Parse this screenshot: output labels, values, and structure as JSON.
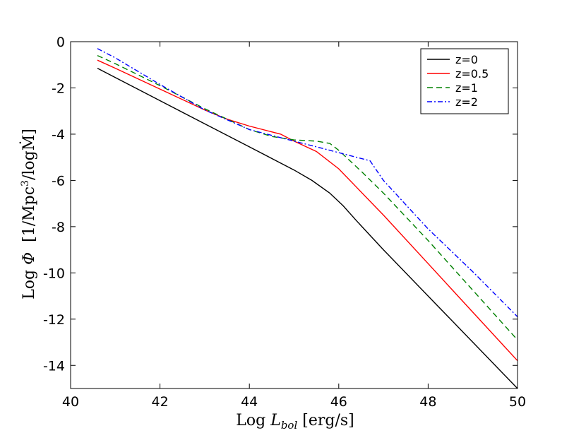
{
  "chart_data": {
    "type": "line",
    "xlabel": "Log L_bol [erg/s]",
    "xlabel_parts": {
      "prefix": "Log ",
      "symbol": "L",
      "sub": "bol",
      "unit": " [erg/s]"
    },
    "ylabel": "Log Φ  [1/Mpc³/logṀ]",
    "ylabel_parts": {
      "prefix": "Log ",
      "symbol": "Φ",
      "unit": "  [1/Mpc",
      "sup": "3",
      "unit2": "/logṀ]"
    },
    "xlim": [
      40,
      50
    ],
    "ylim": [
      -15,
      0
    ],
    "xticks": [
      40,
      42,
      44,
      46,
      48,
      50
    ],
    "yticks": [
      0,
      -2,
      -4,
      -6,
      -8,
      -10,
      -12,
      -14
    ],
    "xtick_labels": [
      "40",
      "42",
      "44",
      "46",
      "48",
      "50"
    ],
    "ytick_labels": [
      "0",
      "-2",
      "-4",
      "-6",
      "-8",
      "-10",
      "-12",
      "-14"
    ],
    "legend_position": "top-right",
    "grid": false,
    "series": [
      {
        "name": "z=0",
        "color": "#000000",
        "style": "solid",
        "x": [
          40.6,
          41.0,
          42.0,
          43.0,
          44.0,
          44.6,
          45.0,
          45.4,
          45.8,
          46.1,
          46.4,
          47.0,
          48.0,
          49.0,
          50.0
        ],
        "y": [
          -1.15,
          -1.55,
          -2.55,
          -3.55,
          -4.55,
          -5.15,
          -5.55,
          -6.0,
          -6.55,
          -7.1,
          -7.75,
          -9.0,
          -11.0,
          -13.0,
          -15.0
        ]
      },
      {
        "name": "z=0.5",
        "color": "#ff0000",
        "style": "solid",
        "x": [
          40.6,
          41.0,
          42.0,
          43.0,
          43.5,
          44.0,
          44.5,
          44.7,
          45.0,
          45.5,
          46.0,
          46.4,
          47.0,
          48.0,
          49.0,
          50.0
        ],
        "y": [
          -0.8,
          -1.15,
          -2.05,
          -2.95,
          -3.35,
          -3.65,
          -3.9,
          -4.0,
          -4.3,
          -4.75,
          -5.5,
          -6.3,
          -7.5,
          -9.6,
          -11.7,
          -13.8
        ]
      },
      {
        "name": "z=1",
        "color": "#008000",
        "style": "dashed",
        "x": [
          40.6,
          41.0,
          42.0,
          43.0,
          44.0,
          44.5,
          45.0,
          45.5,
          45.8,
          46.0,
          46.5,
          47.0,
          48.0,
          49.0,
          50.0
        ],
        "y": [
          -0.6,
          -0.95,
          -1.9,
          -2.9,
          -3.8,
          -4.1,
          -4.25,
          -4.3,
          -4.4,
          -4.7,
          -5.6,
          -6.55,
          -8.6,
          -10.75,
          -12.9
        ]
      },
      {
        "name": "z=2",
        "color": "#0000ff",
        "style": "dashdot",
        "x": [
          40.6,
          41.0,
          42.0,
          43.0,
          44.0,
          45.0,
          45.5,
          46.0,
          46.5,
          46.7,
          47.0,
          48.0,
          49.0,
          50.0
        ],
        "y": [
          -0.3,
          -0.7,
          -1.85,
          -2.95,
          -3.8,
          -4.3,
          -4.55,
          -4.8,
          -5.05,
          -5.15,
          -6.0,
          -8.1,
          -9.95,
          -11.9
        ]
      }
    ]
  }
}
